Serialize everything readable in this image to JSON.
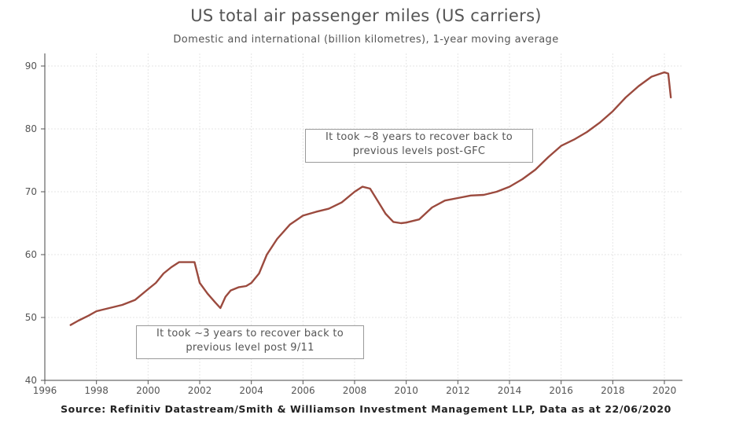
{
  "chart_data": {
    "type": "line",
    "title": "US total air passenger miles (US carriers)",
    "subtitle": "Domestic and international (billion kilometres), 1-year moving average",
    "xlabel": "",
    "ylabel": "",
    "xlim": [
      1996,
      2020.7
    ],
    "ylim": [
      40,
      92
    ],
    "x_ticks": [
      "1996",
      "1998",
      "2000",
      "2002",
      "2004",
      "2006",
      "2008",
      "2010",
      "2012",
      "2014",
      "2016",
      "2018",
      "2020"
    ],
    "y_ticks": [
      "40",
      "50",
      "60",
      "70",
      "80",
      "90"
    ],
    "grid": true,
    "line_color": "#9b4a3e",
    "series": [
      {
        "name": "",
        "x": [
          1997.0,
          1997.3,
          1997.7,
          1998.0,
          1998.5,
          1999.0,
          1999.5,
          2000.0,
          2000.3,
          2000.6,
          2000.9,
          2001.2,
          2001.5,
          2001.8,
          2002.0,
          2002.3,
          2002.6,
          2002.8,
          2003.0,
          2003.2,
          2003.5,
          2003.8,
          2004.0,
          2004.3,
          2004.6,
          2005.0,
          2005.5,
          2006.0,
          2006.5,
          2007.0,
          2007.5,
          2008.0,
          2008.3,
          2008.6,
          2008.9,
          2009.2,
          2009.5,
          2009.8,
          2010.0,
          2010.5,
          2011.0,
          2011.5,
          2012.0,
          2012.5,
          2013.0,
          2013.5,
          2014.0,
          2014.5,
          2015.0,
          2015.5,
          2016.0,
          2016.5,
          2017.0,
          2017.5,
          2018.0,
          2018.5,
          2019.0,
          2019.5,
          2020.0,
          2020.15,
          2020.25
        ],
        "values": [
          48.8,
          49.5,
          50.3,
          51.0,
          51.5,
          52.0,
          52.8,
          54.5,
          55.5,
          57.0,
          58.0,
          58.8,
          58.8,
          58.8,
          55.5,
          53.8,
          52.4,
          51.5,
          53.3,
          54.3,
          54.8,
          55.0,
          55.5,
          57.0,
          60.0,
          62.5,
          64.8,
          66.2,
          66.8,
          67.3,
          68.3,
          70.0,
          70.8,
          70.5,
          68.5,
          66.5,
          65.2,
          65.0,
          65.1,
          65.6,
          67.5,
          68.6,
          69.0,
          69.4,
          69.5,
          70.0,
          70.8,
          72.0,
          73.5,
          75.5,
          77.3,
          78.3,
          79.5,
          81.0,
          82.8,
          85.0,
          86.8,
          88.3,
          89.0,
          88.8,
          85.0
        ]
      }
    ],
    "annotations": [
      {
        "lines": [
          "It took ~8 years to recover back to",
          "previous levels post-GFC"
        ]
      },
      {
        "lines": [
          "It took ~3 years to recover back to",
          "previous level post 9/11"
        ]
      }
    ],
    "source": "Source: Refinitiv Datastream/Smith & Williamson Investment Management LLP, Data as at 22/06/2020"
  }
}
